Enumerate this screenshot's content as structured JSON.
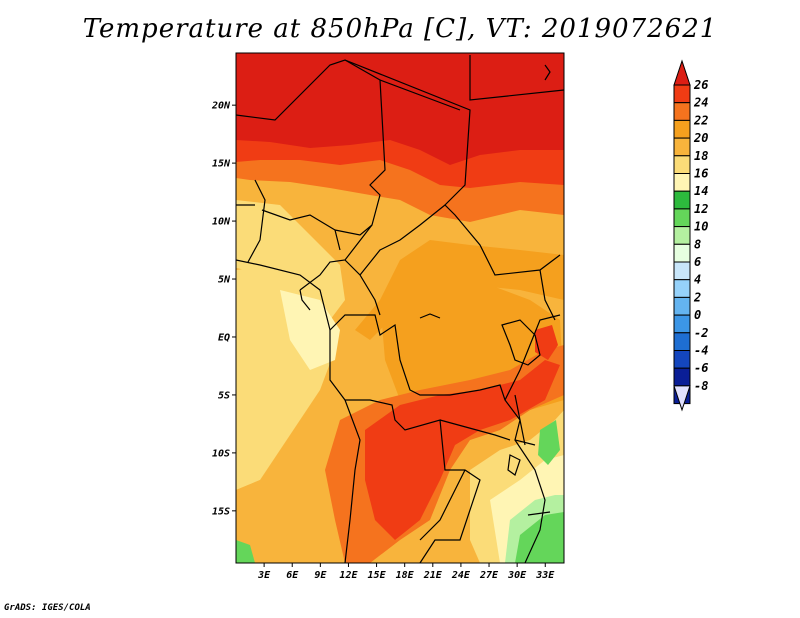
{
  "title": "Temperature at 850hPa [C], VT: 2019072621",
  "credit": "GrADS: IGES/COLA",
  "map": {
    "lat_ticks": [
      {
        "value": 20,
        "label": "20N"
      },
      {
        "value": 15,
        "label": "15N"
      },
      {
        "value": 10,
        "label": "10N"
      },
      {
        "value": 5,
        "label": "5N"
      },
      {
        "value": 0,
        "label": "EQ"
      },
      {
        "value": -5,
        "label": "5S"
      },
      {
        "value": -10,
        "label": "10S"
      },
      {
        "value": -15,
        "label": "15S"
      }
    ],
    "lon_ticks": [
      {
        "value": 3,
        "label": "3E"
      },
      {
        "value": 6,
        "label": "6E"
      },
      {
        "value": 9,
        "label": "9E"
      },
      {
        "value": 12,
        "label": "12E"
      },
      {
        "value": 15,
        "label": "15E"
      },
      {
        "value": 18,
        "label": "18E"
      },
      {
        "value": 21,
        "label": "21E"
      },
      {
        "value": 24,
        "label": "24E"
      },
      {
        "value": 27,
        "label": "27E"
      },
      {
        "value": 30,
        "label": "30E"
      },
      {
        "value": 33,
        "label": "33E"
      }
    ],
    "lat_range": [
      -19.5,
      24.5
    ],
    "lon_range": [
      0,
      35
    ]
  },
  "colorbar": {
    "levels": [
      {
        "label": "26",
        "color": "#dc1e14"
      },
      {
        "label": "24",
        "color": "#f03c14"
      },
      {
        "label": "22",
        "color": "#f5731e"
      },
      {
        "label": "20",
        "color": "#f5a01e"
      },
      {
        "label": "18",
        "color": "#f8b43c"
      },
      {
        "label": "16",
        "color": "#fbdc78"
      },
      {
        "label": "14",
        "color": "#fff5b4"
      },
      {
        "label": "12",
        "color": "#2dba3d"
      },
      {
        "label": "10",
        "color": "#64d65a"
      },
      {
        "label": "8",
        "color": "#b4f0a0"
      },
      {
        "label": "6",
        "color": "#e6ffe0"
      },
      {
        "label": "4",
        "color": "#c8e6fa"
      },
      {
        "label": "2",
        "color": "#96d2fa"
      },
      {
        "label": "0",
        "color": "#64b4f0"
      },
      {
        "label": "-2",
        "color": "#3c96e6"
      },
      {
        "label": "-4",
        "color": "#1e6ed2"
      },
      {
        "label": "-6",
        "color": "#1446be"
      },
      {
        "label": "-8",
        "color": "#0a1e96"
      }
    ],
    "top_color": "#dc1e14",
    "bottom_color": "#e1e1ff"
  }
}
